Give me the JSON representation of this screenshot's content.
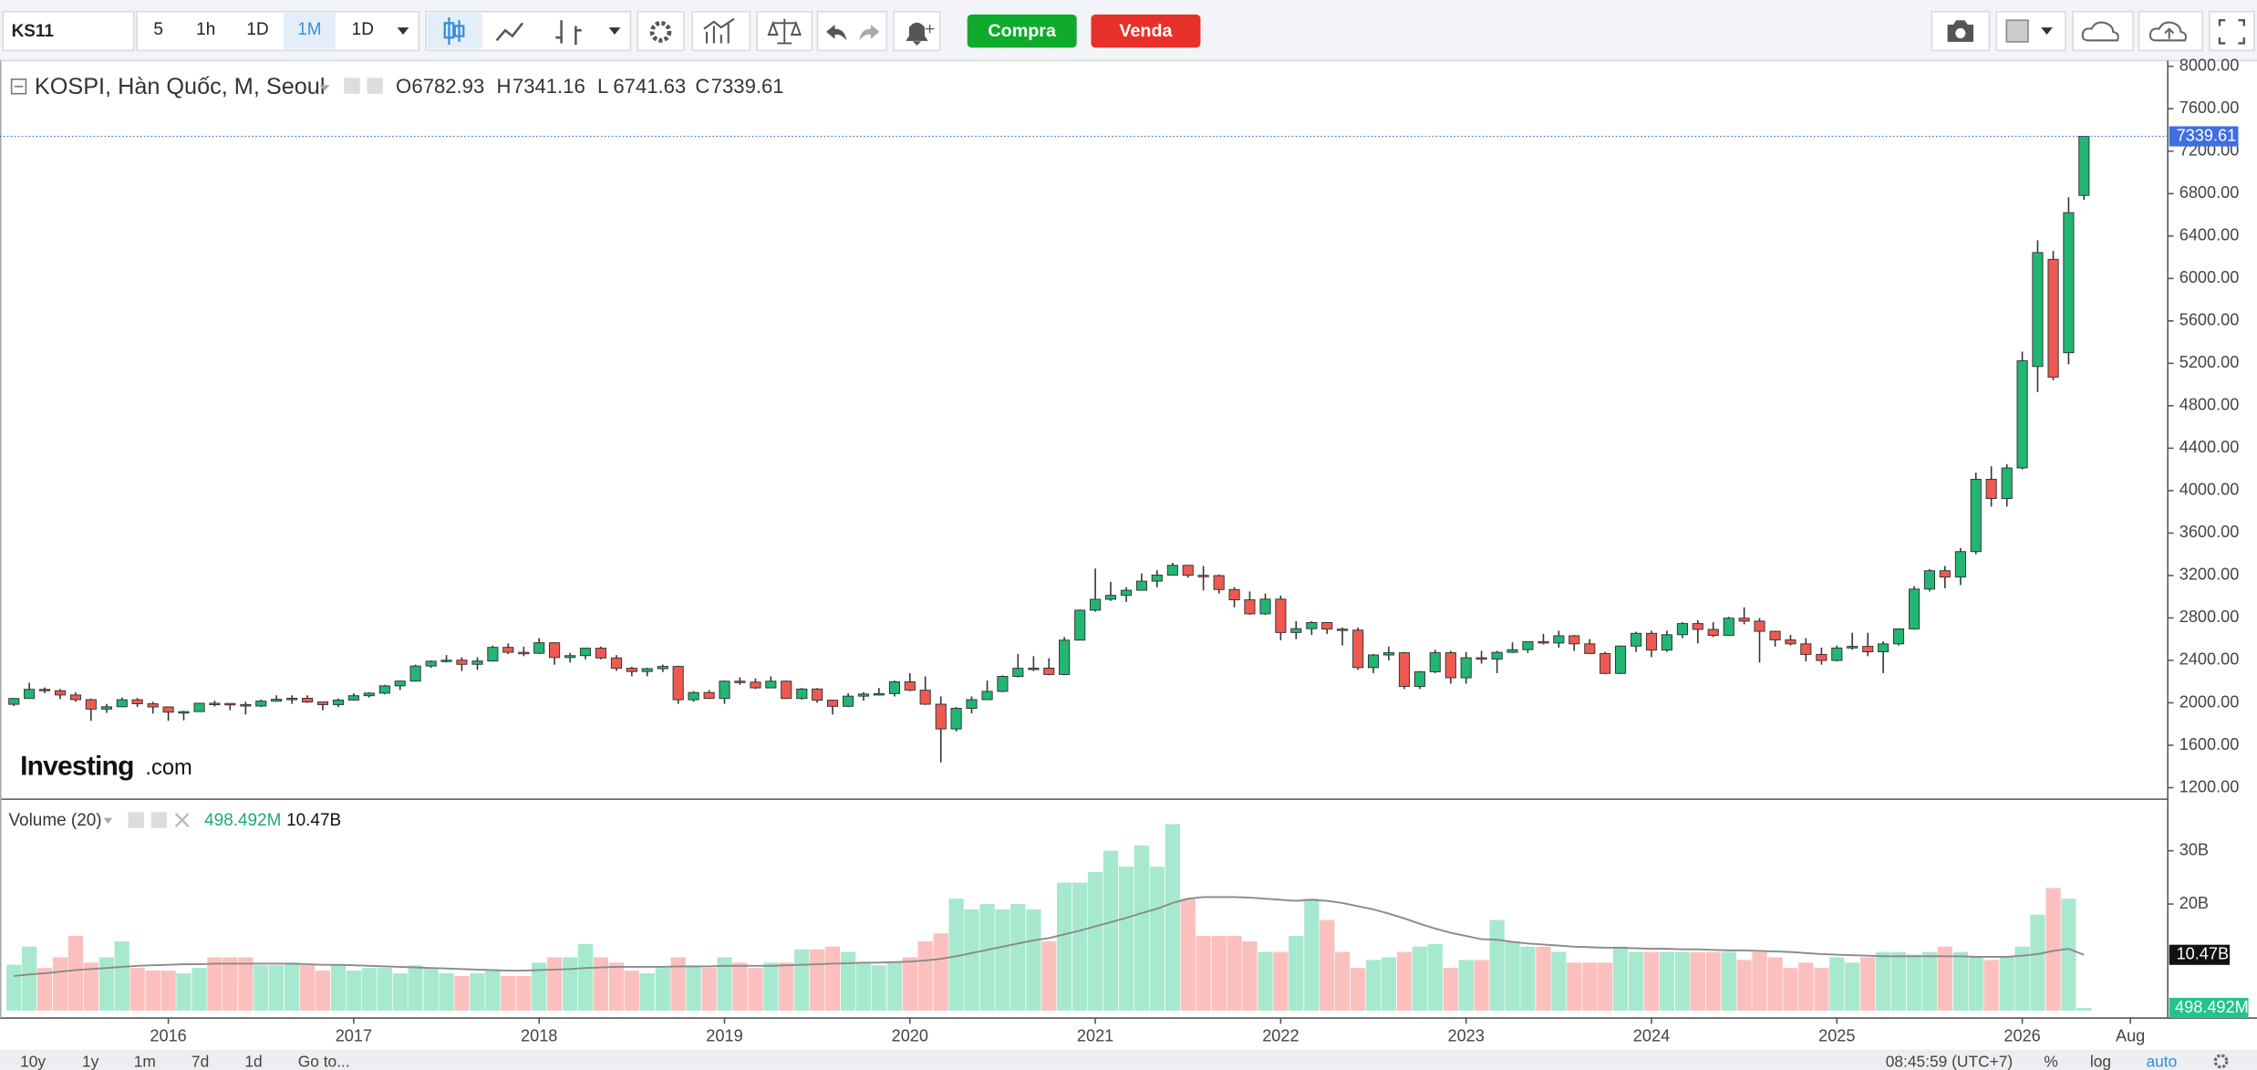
{
  "toolbar": {
    "symbol": "KS11",
    "intervals": [
      "5",
      "1h",
      "1D",
      "1M",
      "1D"
    ],
    "buy": "Compra",
    "sell": "Venda"
  },
  "logo": [
    "Investing",
    ".com"
  ],
  "bottom_bar": {
    "ranges": [
      "10y",
      "1y",
      "1m",
      "7d",
      "1d"
    ],
    "goto": "Go to...",
    "time": "08:45:59 (UTC+7)",
    "options": [
      "%",
      "log",
      "auto"
    ]
  },
  "chart_data": {
    "type": "candlestick",
    "title": "KOSPI, Hàn Quốc, M, Seoul",
    "legend_keys": [
      "O",
      "H",
      "L",
      "C"
    ],
    "up_color": "#22b573",
    "down_color": "#ee5a52",
    "last_color": "#3f6fe0",
    "xlim": [
      2015.092,
      2026.777
    ],
    "xticks": [
      2016,
      2017,
      2018,
      2019,
      2020,
      2021,
      2022,
      2023,
      2024,
      2025,
      2026,
      {
        "value": 2026.583,
        "label": "Aug"
      }
    ],
    "ylim": [
      1105,
      8054
    ],
    "yticks": [
      {
        "value": 1200,
        "label": "1200.00"
      },
      {
        "value": 1600,
        "label": "1600.00"
      },
      {
        "value": 2000,
        "label": "2000.00"
      },
      {
        "value": 2400,
        "label": "2400.00"
      },
      {
        "value": 2800,
        "label": "2800.00"
      },
      {
        "value": 3200,
        "label": "3200.00"
      },
      {
        "value": 3600,
        "label": "3600.00"
      },
      {
        "value": 4000,
        "label": "4000.00"
      },
      {
        "value": 4400,
        "label": "4400.00"
      },
      {
        "value": 4800,
        "label": "4800.00"
      },
      {
        "value": 5200,
        "label": "5200.00"
      },
      {
        "value": 5600,
        "label": "5600.00"
      },
      {
        "value": 6000,
        "label": "6000.00"
      },
      {
        "value": 6400,
        "label": "6400.00"
      },
      {
        "value": 6800,
        "label": "6800.00"
      },
      {
        "value": 7200,
        "label": "7200.00"
      },
      {
        "value": 7600,
        "label": "7600.00"
      },
      {
        "value": 8000,
        "label": "8000.00"
      }
    ],
    "x": [
      2015.167,
      2015.25,
      2015.333,
      2015.417,
      2015.5,
      2015.583,
      2015.667,
      2015.75,
      2015.833,
      2015.917,
      2016,
      2016.083,
      2016.167,
      2016.25,
      2016.333,
      2016.417,
      2016.5,
      2016.583,
      2016.667,
      2016.75,
      2016.833,
      2016.917,
      2017,
      2017.083,
      2017.167,
      2017.25,
      2017.333,
      2017.417,
      2017.5,
      2017.583,
      2017.667,
      2017.75,
      2017.833,
      2017.917,
      2018,
      2018.083,
      2018.167,
      2018.25,
      2018.333,
      2018.417,
      2018.5,
      2018.583,
      2018.667,
      2018.75,
      2018.833,
      2018.917,
      2019,
      2019.083,
      2019.167,
      2019.25,
      2019.333,
      2019.417,
      2019.5,
      2019.583,
      2019.667,
      2019.75,
      2019.833,
      2019.917,
      2020,
      2020.083,
      2020.167,
      2020.25,
      2020.333,
      2020.417,
      2020.5,
      2020.583,
      2020.667,
      2020.75,
      2020.833,
      2020.917,
      2021,
      2021.083,
      2021.167,
      2021.25,
      2021.333,
      2021.417,
      2021.5,
      2021.583,
      2021.667,
      2021.75,
      2021.833,
      2021.917,
      2022,
      2022.083,
      2022.167,
      2022.25,
      2022.333,
      2022.417,
      2022.5,
      2022.583,
      2022.667,
      2022.75,
      2022.833,
      2022.917,
      2023,
      2023.083,
      2023.167,
      2023.25,
      2023.333,
      2023.417,
      2023.5,
      2023.583,
      2023.667,
      2023.75,
      2023.833,
      2023.917,
      2024,
      2024.083,
      2024.167,
      2024.25,
      2024.333,
      2024.417,
      2024.5,
      2024.583,
      2024.667,
      2024.75,
      2024.833,
      2024.917,
      2025,
      2025.083,
      2025.167,
      2025.25,
      2025.333,
      2025.417,
      2025.5,
      2025.583,
      2025.667,
      2025.75,
      2025.833,
      2025.917,
      2026,
      2026.083,
      2026.167,
      2026.25,
      2026.333
    ],
    "candles": [
      [
        1986,
        2046,
        1970,
        2041
      ],
      [
        2041,
        2189,
        2040,
        2127
      ],
      [
        2127,
        2145,
        2090,
        2114
      ],
      [
        2114,
        2130,
        2035,
        2074
      ],
      [
        2074,
        2100,
        2010,
        2030
      ],
      [
        2030,
        2040,
        1830,
        1941
      ],
      [
        1941,
        1990,
        1905,
        1963
      ],
      [
        1963,
        2050,
        1960,
        2029
      ],
      [
        2029,
        2045,
        1960,
        1991
      ],
      [
        1991,
        2010,
        1900,
        1961
      ],
      [
        1961,
        1965,
        1830,
        1912
      ],
      [
        1912,
        1925,
        1835,
        1917
      ],
      [
        1917,
        2000,
        1915,
        1996
      ],
      [
        1996,
        2020,
        1965,
        1994
      ],
      [
        1994,
        1995,
        1930,
        1983
      ],
      [
        1983,
        2010,
        1890,
        1970
      ],
      [
        1970,
        2030,
        1960,
        2016
      ],
      [
        2016,
        2070,
        2010,
        2034
      ],
      [
        2034,
        2070,
        1990,
        2043
      ],
      [
        2043,
        2070,
        2000,
        2008
      ],
      [
        2008,
        2010,
        1930,
        1983
      ],
      [
        1983,
        2040,
        1960,
        2026
      ],
      [
        2026,
        2090,
        2020,
        2067
      ],
      [
        2067,
        2100,
        2050,
        2091
      ],
      [
        2091,
        2170,
        2080,
        2160
      ],
      [
        2160,
        2210,
        2120,
        2205
      ],
      [
        2205,
        2360,
        2200,
        2347
      ],
      [
        2347,
        2400,
        2330,
        2392
      ],
      [
        2392,
        2450,
        2380,
        2402
      ],
      [
        2402,
        2430,
        2300,
        2363
      ],
      [
        2363,
        2430,
        2310,
        2394
      ],
      [
        2394,
        2540,
        2390,
        2523
      ],
      [
        2523,
        2560,
        2460,
        2476
      ],
      [
        2476,
        2530,
        2440,
        2467
      ],
      [
        2467,
        2610,
        2460,
        2566
      ],
      [
        2566,
        2570,
        2360,
        2427
      ],
      [
        2427,
        2470,
        2380,
        2445
      ],
      [
        2445,
        2520,
        2410,
        2515
      ],
      [
        2515,
        2530,
        2410,
        2423
      ],
      [
        2423,
        2450,
        2300,
        2326
      ],
      [
        2326,
        2340,
        2250,
        2295
      ],
      [
        2295,
        2330,
        2250,
        2322
      ],
      [
        2322,
        2360,
        2290,
        2343
      ],
      [
        2343,
        2350,
        1990,
        2029
      ],
      [
        2029,
        2110,
        2010,
        2097
      ],
      [
        2097,
        2120,
        2040,
        2041
      ],
      [
        2041,
        2210,
        1990,
        2204
      ],
      [
        2204,
        2240,
        2170,
        2195
      ],
      [
        2195,
        2230,
        2130,
        2141
      ],
      [
        2141,
        2250,
        2140,
        2204
      ],
      [
        2204,
        2210,
        2040,
        2041
      ],
      [
        2041,
        2140,
        2030,
        2130
      ],
      [
        2130,
        2140,
        2000,
        2025
      ],
      [
        2025,
        2030,
        1890,
        1967
      ],
      [
        1967,
        2090,
        1960,
        2063
      ],
      [
        2063,
        2100,
        2020,
        2083
      ],
      [
        2083,
        2140,
        2070,
        2087
      ],
      [
        2087,
        2210,
        2060,
        2198
      ],
      [
        2198,
        2280,
        2110,
        2119
      ],
      [
        2119,
        2250,
        1980,
        1987
      ],
      [
        1987,
        2060,
        1439,
        1754
      ],
      [
        1754,
        1960,
        1730,
        1948
      ],
      [
        1948,
        2060,
        1900,
        2030
      ],
      [
        2030,
        2210,
        2030,
        2108
      ],
      [
        2108,
        2260,
        2100,
        2249
      ],
      [
        2249,
        2460,
        2240,
        2326
      ],
      [
        2326,
        2440,
        2300,
        2327
      ],
      [
        2327,
        2420,
        2260,
        2267
      ],
      [
        2267,
        2620,
        2260,
        2591
      ],
      [
        2591,
        2880,
        2590,
        2873
      ],
      [
        2873,
        3266,
        2860,
        2976
      ],
      [
        2976,
        3140,
        2960,
        3013
      ],
      [
        3013,
        3090,
        2950,
        3061
      ],
      [
        3061,
        3220,
        3060,
        3147
      ],
      [
        3147,
        3250,
        3090,
        3204
      ],
      [
        3204,
        3320,
        3200,
        3296
      ],
      [
        3296,
        3300,
        3180,
        3202
      ],
      [
        3202,
        3290,
        3060,
        3199
      ],
      [
        3199,
        3210,
        3030,
        3068
      ],
      [
        3068,
        3090,
        2900,
        2971
      ],
      [
        2971,
        3050,
        2830,
        2839
      ],
      [
        2839,
        3030,
        2830,
        2977
      ],
      [
        2977,
        3010,
        2590,
        2663
      ],
      [
        2663,
        2770,
        2600,
        2699
      ],
      [
        2699,
        2770,
        2640,
        2757
      ],
      [
        2757,
        2760,
        2650,
        2695
      ],
      [
        2695,
        2710,
        2540,
        2685
      ],
      [
        2685,
        2710,
        2310,
        2332
      ],
      [
        2332,
        2460,
        2280,
        2451
      ],
      [
        2451,
        2530,
        2400,
        2472
      ],
      [
        2472,
        2480,
        2130,
        2155
      ],
      [
        2155,
        2300,
        2130,
        2293
      ],
      [
        2293,
        2500,
        2280,
        2472
      ],
      [
        2472,
        2490,
        2180,
        2236
      ],
      [
        2236,
        2480,
        2180,
        2425
      ],
      [
        2425,
        2490,
        2370,
        2412
      ],
      [
        2412,
        2490,
        2280,
        2476
      ],
      [
        2476,
        2570,
        2470,
        2501
      ],
      [
        2501,
        2580,
        2470,
        2577
      ],
      [
        2577,
        2650,
        2550,
        2564
      ],
      [
        2564,
        2680,
        2520,
        2632
      ],
      [
        2632,
        2640,
        2490,
        2556
      ],
      [
        2556,
        2600,
        2460,
        2465
      ],
      [
        2465,
        2480,
        2270,
        2277
      ],
      [
        2277,
        2540,
        2270,
        2535
      ],
      [
        2535,
        2670,
        2480,
        2655
      ],
      [
        2655,
        2680,
        2430,
        2497
      ],
      [
        2497,
        2680,
        2480,
        2642
      ],
      [
        2642,
        2760,
        2610,
        2747
      ],
      [
        2747,
        2780,
        2560,
        2692
      ],
      [
        2692,
        2760,
        2620,
        2636
      ],
      [
        2636,
        2810,
        2630,
        2798
      ],
      [
        2798,
        2900,
        2740,
        2770
      ],
      [
        2770,
        2800,
        2380,
        2674
      ],
      [
        2674,
        2680,
        2530,
        2593
      ],
      [
        2593,
        2640,
        2540,
        2556
      ],
      [
        2556,
        2610,
        2390,
        2456
      ],
      [
        2456,
        2520,
        2360,
        2399
      ],
      [
        2399,
        2540,
        2390,
        2517
      ],
      [
        2517,
        2660,
        2500,
        2532
      ],
      [
        2532,
        2660,
        2440,
        2481
      ],
      [
        2481,
        2580,
        2280,
        2556
      ],
      [
        2556,
        2700,
        2540,
        2697
      ],
      [
        2697,
        3100,
        2690,
        3072
      ],
      [
        3072,
        3260,
        3050,
        3245
      ],
      [
        3245,
        3290,
        3080,
        3186
      ],
      [
        3186,
        3460,
        3110,
        3425
      ],
      [
        3425,
        4170,
        3400,
        4107
      ],
      [
        4107,
        4230,
        3850,
        3926
      ],
      [
        3926,
        4250,
        3850,
        4214
      ],
      [
        4214,
        5310,
        4200,
        5224
      ],
      [
        5170,
        6360,
        4930,
        6244
      ],
      [
        6180,
        6260,
        5040,
        5070
      ],
      [
        5300,
        6765,
        5190,
        6620
      ],
      [
        6782.93,
        7341.16,
        6741.63,
        7339.61
      ]
    ],
    "volume": {
      "title": "Volume (20)",
      "up_color": "#a6e9cf",
      "down_color": "#fbc0bd",
      "ma_color": "#8a8a8a",
      "ylim": [
        -1.4,
        39.4
      ],
      "yticks": [
        {
          "value": 20,
          "label": "20B"
        },
        {
          "value": 30,
          "label": "30B"
        }
      ],
      "values": [
        8.6,
        12,
        8,
        10,
        14,
        9,
        10,
        13,
        8,
        7.5,
        7.5,
        7,
        8,
        10,
        10,
        10,
        8.5,
        8.5,
        9,
        8.5,
        7.5,
        8.5,
        7.5,
        8,
        8,
        7,
        8.5,
        8,
        7,
        6.5,
        7,
        7.5,
        6.5,
        6.5,
        9,
        10,
        10,
        12.5,
        10,
        9,
        7.5,
        7,
        8,
        10,
        8.5,
        8,
        10,
        9,
        8,
        9,
        9,
        11.5,
        11.5,
        12,
        11,
        9,
        8.5,
        9,
        10,
        13,
        14.5,
        21,
        19,
        20,
        19,
        20,
        19,
        13,
        24,
        24,
        26,
        30,
        27,
        31,
        27,
        35,
        21,
        14,
        14,
        14,
        13,
        11,
        11,
        14,
        21,
        17,
        11,
        8,
        9.5,
        10,
        11,
        12,
        12.5,
        8,
        9.5,
        9.5,
        17,
        13,
        12,
        12,
        11,
        9,
        9,
        9,
        12,
        11,
        11,
        11,
        11,
        11,
        11,
        11,
        9.5,
        11,
        10,
        8,
        9,
        8,
        10,
        9,
        10,
        11,
        11,
        10.5,
        11,
        12,
        11,
        10,
        9.5,
        10,
        12,
        18,
        23,
        21,
        0.498492
      ],
      "value_labels": {
        "134": "498.492M"
      },
      "ma_values": [
        6.5,
        6.8,
        7,
        7.3,
        7.6,
        7.8,
        8,
        8.2,
        8.4,
        8.5,
        8.6,
        8.7,
        8.7,
        8.8,
        8.8,
        8.8,
        8.8,
        8.8,
        8.8,
        8.7,
        8.6,
        8.6,
        8.5,
        8.4,
        8.3,
        8.2,
        8.1,
        8.0,
        7.9,
        7.8,
        7.7,
        7.6,
        7.5,
        7.5,
        7.6,
        7.7,
        7.8,
        8.0,
        8.1,
        8.2,
        8.2,
        8.2,
        8.2,
        8.3,
        8.3,
        8.3,
        8.4,
        8.4,
        8.4,
        8.4,
        8.5,
        8.6,
        8.7,
        8.8,
        8.9,
        9.0,
        9.0,
        9.1,
        9.2,
        9.4,
        9.7,
        10.2,
        10.8,
        11.4,
        12,
        12.6,
        13.2,
        13.6,
        14.3,
        15.0,
        15.8,
        16.6,
        17.4,
        18.3,
        19.1,
        20.2,
        21.0,
        21.3,
        21.3,
        21.3,
        21.2,
        21.0,
        20.8,
        20.6,
        20.8,
        20.6,
        20.2,
        19.6,
        19.0,
        18.2,
        17.3,
        16.3,
        15.4,
        14.6,
        14.0,
        13.4,
        13.3,
        12.9,
        12.6,
        12.4,
        12.2,
        12.0,
        11.9,
        11.8,
        11.8,
        11.7,
        11.6,
        11.6,
        11.5,
        11.5,
        11.4,
        11.3,
        11.3,
        11.2,
        11.1,
        11.0,
        10.8,
        10.6,
        10.5,
        10.4,
        10.3,
        10.2,
        10.2,
        10.2,
        10.2,
        10.2,
        10.2,
        10.1,
        10.1,
        10.1,
        10.3,
        10.6,
        11.2,
        11.6,
        10.47
      ],
      "ma_value_labels": {
        "134": "10.47B"
      }
    }
  }
}
